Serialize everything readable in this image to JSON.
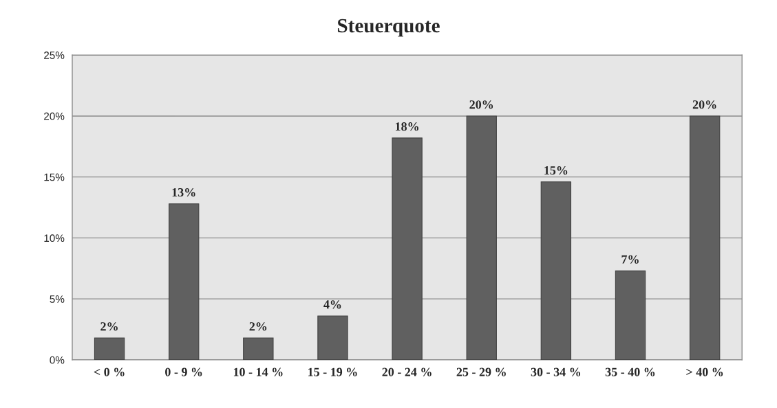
{
  "chart_data": {
    "type": "bar",
    "title": "Steuerquote",
    "categories": [
      "< 0 %",
      "0 - 9 %",
      "10 - 14 %",
      "15 - 19 %",
      "20 - 24 %",
      "25 - 29 %",
      "30 - 34 %",
      "35 - 40 %",
      "> 40 %"
    ],
    "values": [
      1.8,
      12.8,
      1.8,
      3.6,
      18.2,
      20.0,
      14.6,
      7.3,
      20.0
    ],
    "value_labels": [
      "2%",
      "13%",
      "2%",
      "4%",
      "18%",
      "20%",
      "15%",
      "7%",
      "20%"
    ],
    "color": "#606060",
    "ylim": [
      0,
      25
    ],
    "yticks": [
      {
        "value": 0,
        "label": "0%"
      },
      {
        "value": 5,
        "label": "5%"
      },
      {
        "value": 10,
        "label": "10%"
      },
      {
        "value": 15,
        "label": "15%"
      },
      {
        "value": 20,
        "label": "20%"
      },
      {
        "value": 25,
        "label": "25%"
      }
    ],
    "grid": "y",
    "legend": false
  }
}
